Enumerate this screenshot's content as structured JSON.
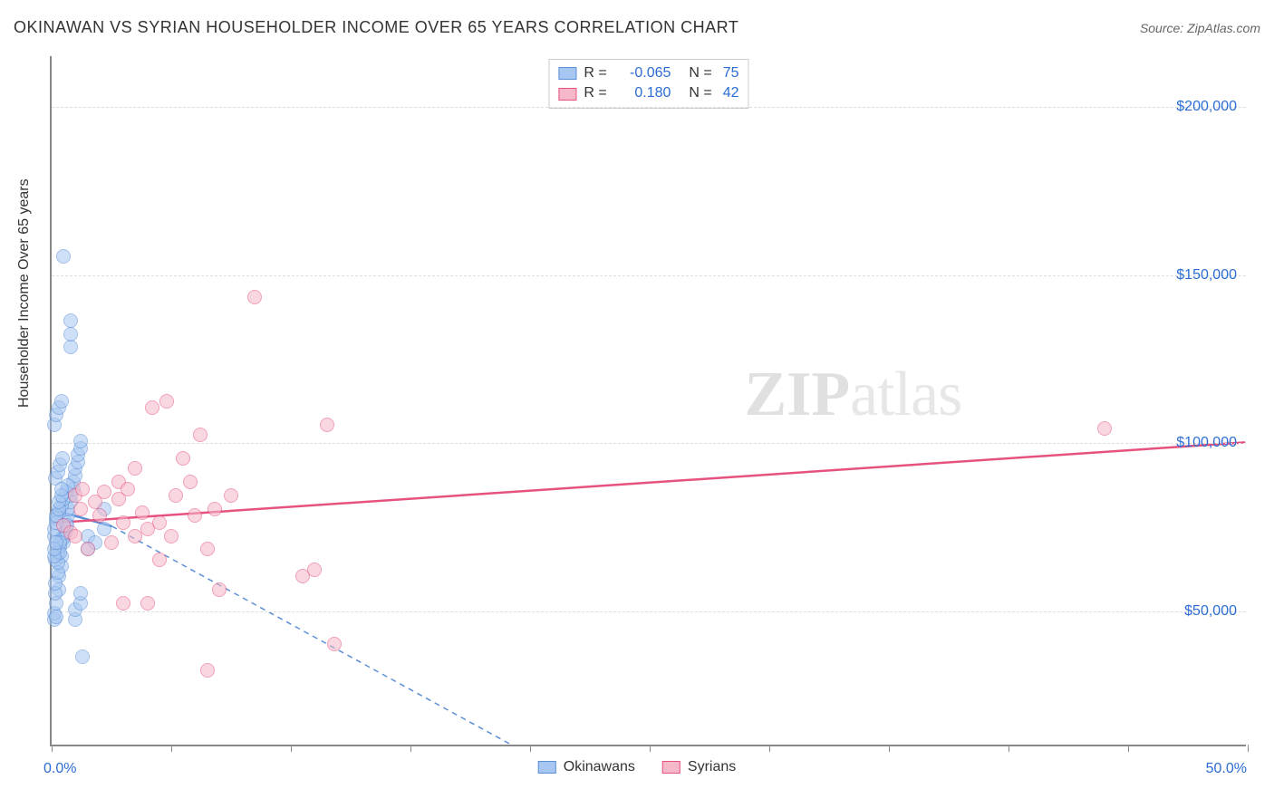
{
  "title": "OKINAWAN VS SYRIAN HOUSEHOLDER INCOME OVER 65 YEARS CORRELATION CHART",
  "source_label": "Source: ZipAtlas.com",
  "watermark": {
    "bold": "ZIP",
    "rest": "atlas"
  },
  "yaxis_title": "Householder Income Over 65 years",
  "chart": {
    "type": "scatter",
    "xlim": [
      0,
      50
    ],
    "ylim": [
      10000,
      215000
    ],
    "x_unit": "%",
    "y_prefix": "$",
    "x_tick_labels": {
      "min": "0.0%",
      "max": "50.0%"
    },
    "x_tick_positions": [
      0,
      5,
      10,
      15,
      20,
      25,
      30,
      35,
      40,
      45,
      50
    ],
    "y_ticks": [
      50000,
      100000,
      150000,
      200000
    ],
    "y_tick_labels": [
      "$50,000",
      "$100,000",
      "$150,000",
      "$200,000"
    ],
    "grid_color": "#dddddd",
    "axis_color": "#888888",
    "background_color": "#ffffff",
    "tick_label_color": "#2b6cd4",
    "title_fontsize": 18,
    "label_fontsize": 16,
    "tick_fontsize": 16,
    "marker_radius": 8,
    "marker_opacity": 0.55,
    "series": [
      {
        "name": "Okinawans",
        "color_fill": "#a7c7f2",
        "color_stroke": "#5b8fd6",
        "stats": {
          "R": "-0.065",
          "N": "75"
        },
        "trend": {
          "x1": 0,
          "y1": 80000,
          "x2": 2.5,
          "y2": 75000,
          "solid": true,
          "width": 2.5,
          "dash_ext": {
            "x1": 2.5,
            "y1": 75000,
            "x2": 20,
            "y2": 7000
          }
        },
        "points": [
          [
            0.1,
            47000
          ],
          [
            0.1,
            49000
          ],
          [
            0.2,
            52000
          ],
          [
            0.2,
            48000
          ],
          [
            0.3,
            56000
          ],
          [
            0.3,
            60000
          ],
          [
            0.4,
            63000
          ],
          [
            0.4,
            66000
          ],
          [
            0.5,
            70000
          ],
          [
            0.5,
            72000
          ],
          [
            0.6,
            74000
          ],
          [
            0.6,
            76000
          ],
          [
            0.7,
            78000
          ],
          [
            0.7,
            80000
          ],
          [
            0.8,
            82000
          ],
          [
            0.8,
            84000
          ],
          [
            0.9,
            86000
          ],
          [
            0.9,
            88000
          ],
          [
            1.0,
            90000
          ],
          [
            1.0,
            92000
          ],
          [
            1.1,
            94000
          ],
          [
            1.1,
            96000
          ],
          [
            1.2,
            98000
          ],
          [
            1.2,
            100000
          ],
          [
            0.15,
            65000
          ],
          [
            0.25,
            67000
          ],
          [
            0.35,
            69000
          ],
          [
            0.45,
            71000
          ],
          [
            0.55,
            73000
          ],
          [
            0.65,
            75000
          ],
          [
            0.2,
            77000
          ],
          [
            0.3,
            79000
          ],
          [
            0.4,
            81000
          ],
          [
            0.5,
            83000
          ],
          [
            0.6,
            85000
          ],
          [
            0.7,
            87000
          ],
          [
            0.15,
            89000
          ],
          [
            0.25,
            91000
          ],
          [
            0.35,
            93000
          ],
          [
            0.45,
            95000
          ],
          [
            0.1,
            72000
          ],
          [
            0.1,
            74000
          ],
          [
            0.2,
            76000
          ],
          [
            0.2,
            78000
          ],
          [
            0.3,
            80000
          ],
          [
            0.3,
            82000
          ],
          [
            0.4,
            84000
          ],
          [
            0.4,
            86000
          ],
          [
            0.15,
            55000
          ],
          [
            0.15,
            58000
          ],
          [
            0.25,
            61000
          ],
          [
            0.25,
            64000
          ],
          [
            0.35,
            67000
          ],
          [
            0.35,
            70000
          ],
          [
            0.1,
            105000
          ],
          [
            0.2,
            108000
          ],
          [
            0.3,
            110000
          ],
          [
            0.4,
            112000
          ],
          [
            0.8,
            128000
          ],
          [
            0.8,
            132000
          ],
          [
            0.8,
            136000
          ],
          [
            1.0,
            47000
          ],
          [
            1.0,
            50000
          ],
          [
            1.2,
            52000
          ],
          [
            1.2,
            55000
          ],
          [
            0.5,
            155000
          ],
          [
            1.3,
            36000
          ],
          [
            1.5,
            68000
          ],
          [
            1.5,
            72000
          ],
          [
            1.8,
            70000
          ],
          [
            2.2,
            80000
          ],
          [
            2.2,
            74000
          ],
          [
            0.1,
            66000
          ],
          [
            0.1,
            68000
          ],
          [
            0.2,
            70000
          ]
        ]
      },
      {
        "name": "Syrians",
        "color_fill": "#f5b8c9",
        "color_stroke": "#e6527e",
        "stats": {
          "R": "0.180",
          "N": "42"
        },
        "trend": {
          "x1": 0,
          "y1": 76000,
          "x2": 50,
          "y2": 100000,
          "solid": true,
          "width": 2.5
        },
        "points": [
          [
            0.5,
            75000
          ],
          [
            0.8,
            73000
          ],
          [
            1.0,
            72000
          ],
          [
            1.2,
            80000
          ],
          [
            1.5,
            68000
          ],
          [
            1.8,
            82000
          ],
          [
            2.0,
            78000
          ],
          [
            2.2,
            85000
          ],
          [
            2.5,
            70000
          ],
          [
            2.8,
            88000
          ],
          [
            3.0,
            76000
          ],
          [
            3.5,
            92000
          ],
          [
            4.0,
            74000
          ],
          [
            4.2,
            110000
          ],
          [
            4.5,
            65000
          ],
          [
            4.8,
            112000
          ],
          [
            5.0,
            72000
          ],
          [
            5.5,
            95000
          ],
          [
            6.0,
            78000
          ],
          [
            6.2,
            102000
          ],
          [
            6.5,
            68000
          ],
          [
            3.0,
            52000
          ],
          [
            4.0,
            52000
          ],
          [
            7.0,
            56000
          ],
          [
            2.8,
            83000
          ],
          [
            3.2,
            86000
          ],
          [
            3.8,
            79000
          ],
          [
            5.2,
            84000
          ],
          [
            5.8,
            88000
          ],
          [
            6.8,
            80000
          ],
          [
            7.5,
            84000
          ],
          [
            8.5,
            143000
          ],
          [
            10.5,
            60000
          ],
          [
            11.0,
            62000
          ],
          [
            11.5,
            105000
          ],
          [
            11.8,
            40000
          ],
          [
            6.5,
            32000
          ],
          [
            3.5,
            72000
          ],
          [
            4.5,
            76000
          ],
          [
            44.0,
            104000
          ],
          [
            1.0,
            84000
          ],
          [
            1.3,
            86000
          ]
        ]
      }
    ]
  },
  "legend_bottom": [
    "Okinawans",
    "Syrians"
  ]
}
